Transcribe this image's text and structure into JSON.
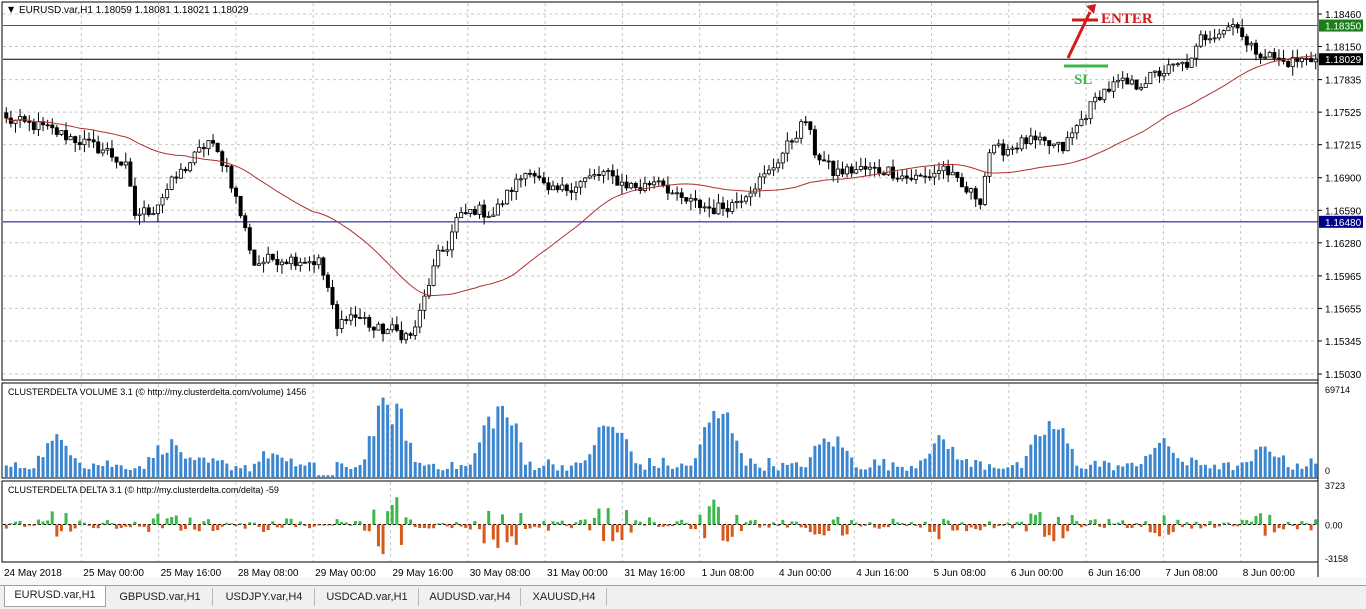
{
  "window": {
    "symbol_header": "EURUSD.var,H1  1.18059 1.18081 1.18021 1.18029"
  },
  "chart_data": [
    {
      "type": "candlestick",
      "symbol": "EURUSD.var,H1",
      "ohlc_header": {
        "open": 1.18059,
        "high": 1.18081,
        "low": 1.18021,
        "close": 1.18029
      },
      "y_ticks": [
        "1.18460",
        "1.18150",
        "1.17835",
        "1.17525",
        "1.17215",
        "1.16900",
        "1.16590",
        "1.16280",
        "1.15965",
        "1.15655",
        "1.15345",
        "1.15030"
      ],
      "ylim": [
        1.1503,
        1.1846
      ],
      "x_ticks": [
        "24 May 2018",
        "25 May 00:00",
        "25 May 16:00",
        "28 May 08:00",
        "29 May 00:00",
        "29 May 16:00",
        "30 May 08:00",
        "31 May 00:00",
        "31 May 16:00",
        "1 Jun 08:00",
        "4 Jun 00:00",
        "4 Jun 16:00",
        "5 Jun 08:00",
        "6 Jun 00:00",
        "6 Jun 16:00",
        "7 Jun 08:00",
        "8 Jun 00:00"
      ],
      "price_levels": [
        {
          "value": 1.1835,
          "label": "1.18350",
          "color": "#1a7f1a"
        },
        {
          "value": 1.18029,
          "label": "1.18029",
          "color": "#000000"
        },
        {
          "value": 1.1648,
          "label": "1.16480",
          "color": "#00008b"
        }
      ],
      "moving_average_color": "#b03030",
      "close_path": [
        [
          0,
          1.1745
        ],
        [
          8,
          1.1738
        ],
        [
          16,
          1.1725
        ],
        [
          22,
          1.1715
        ],
        [
          26,
          1.17
        ],
        [
          28,
          1.1655
        ],
        [
          32,
          1.166
        ],
        [
          36,
          1.1685
        ],
        [
          40,
          1.1705
        ],
        [
          44,
          1.1725
        ],
        [
          48,
          1.17
        ],
        [
          52,
          1.164
        ],
        [
          54,
          1.1608
        ],
        [
          58,
          1.1613
        ],
        [
          64,
          1.1612
        ],
        [
          68,
          1.161
        ],
        [
          70,
          1.1585
        ],
        [
          72,
          1.1545
        ],
        [
          74,
          1.156
        ],
        [
          78,
          1.1555
        ],
        [
          80,
          1.1545
        ],
        [
          84,
          1.1545
        ],
        [
          88,
          1.1538
        ],
        [
          90,
          1.156
        ],
        [
          92,
          1.159
        ],
        [
          94,
          1.1615
        ],
        [
          96,
          1.1625
        ],
        [
          98,
          1.165
        ],
        [
          102,
          1.166
        ],
        [
          106,
          1.1655
        ],
        [
          110,
          1.168
        ],
        [
          114,
          1.17
        ],
        [
          118,
          1.1675
        ],
        [
          122,
          1.168
        ],
        [
          126,
          1.1688
        ],
        [
          130,
          1.1694
        ],
        [
          134,
          1.1685
        ],
        [
          138,
          1.168
        ],
        [
          142,
          1.169
        ],
        [
          146,
          1.167
        ],
        [
          150,
          1.1665
        ],
        [
          154,
          1.166
        ],
        [
          158,
          1.1665
        ],
        [
          162,
          1.168
        ],
        [
          166,
          1.1695
        ],
        [
          170,
          1.172
        ],
        [
          174,
          1.1745
        ],
        [
          176,
          1.1715
        ],
        [
          180,
          1.1695
        ],
        [
          186,
          1.1698
        ],
        [
          192,
          1.1697
        ],
        [
          196,
          1.169
        ],
        [
          200,
          1.169
        ],
        [
          204,
          1.17
        ],
        [
          208,
          1.168
        ],
        [
          212,
          1.167
        ],
        [
          214,
          1.1715
        ],
        [
          218,
          1.1718
        ],
        [
          222,
          1.1725
        ],
        [
          226,
          1.1722
        ],
        [
          230,
          1.1718
        ],
        [
          234,
          1.1745
        ],
        [
          238,
          1.177
        ],
        [
          242,
          1.178
        ],
        [
          246,
          1.1778
        ],
        [
          250,
          1.1788
        ],
        [
          254,
          1.1795
        ],
        [
          258,
          1.18
        ],
        [
          260,
          1.1823
        ],
        [
          264,
          1.183
        ],
        [
          268,
          1.1838
        ],
        [
          270,
          1.1815
        ],
        [
          274,
          1.1808
        ],
        [
          278,
          1.18
        ],
        [
          282,
          1.1802
        ],
        [
          285,
          1.1803
        ]
      ],
      "annotations": [
        {
          "text": "ENTER",
          "color": "#d11a1a"
        },
        {
          "text": "SL",
          "color": "#3cb84a"
        }
      ]
    },
    {
      "type": "bar",
      "title": "CLUSTERDELTA VOLUME 3.1 (© http://my.clusterdelta.com/volume) 1456",
      "y_ticks": [
        "69714",
        "0"
      ],
      "ylim": [
        0,
        69714
      ],
      "color": "#3a86d0",
      "sessions": [
        {
          "start": 0,
          "peak": 0.5,
          "len": 24
        },
        {
          "start": 24,
          "peak": 0.45,
          "len": 24
        },
        {
          "start": 48,
          "peak": 0.33,
          "len": 20
        },
        {
          "start": 72,
          "peak": 0.95,
          "len": 24
        },
        {
          "start": 96,
          "peak": 0.92,
          "len": 24
        },
        {
          "start": 120,
          "peak": 0.7,
          "len": 24
        },
        {
          "start": 144,
          "peak": 0.85,
          "len": 24
        },
        {
          "start": 168,
          "peak": 0.52,
          "len": 24
        },
        {
          "start": 192,
          "peak": 0.48,
          "len": 24
        },
        {
          "start": 216,
          "peak": 0.7,
          "len": 24
        },
        {
          "start": 240,
          "peak": 0.45,
          "len": 24
        },
        {
          "start": 264,
          "peak": 0.4,
          "len": 22
        }
      ]
    },
    {
      "type": "bar",
      "title": "CLUSTERDELTA DELTA 3.1 (© http://my.clusterdelta.com/delta) -59",
      "y_ticks": [
        "3723",
        "0.00",
        "-3158"
      ],
      "ylim": [
        -3158,
        3723
      ],
      "colors": {
        "positive": "#3cb84a",
        "negative": "#d8581c"
      }
    }
  ],
  "tabs": [
    {
      "label": "EURUSD.var,H1",
      "active": true
    },
    {
      "label": "GBPUSD.var,H1",
      "active": false
    },
    {
      "label": "USDJPY.var,H4",
      "active": false
    },
    {
      "label": "USDCAD.var,H1",
      "active": false
    },
    {
      "label": "AUDUSD.var,H4",
      "active": false
    },
    {
      "label": "XAUUSD,H4",
      "active": false
    }
  ]
}
